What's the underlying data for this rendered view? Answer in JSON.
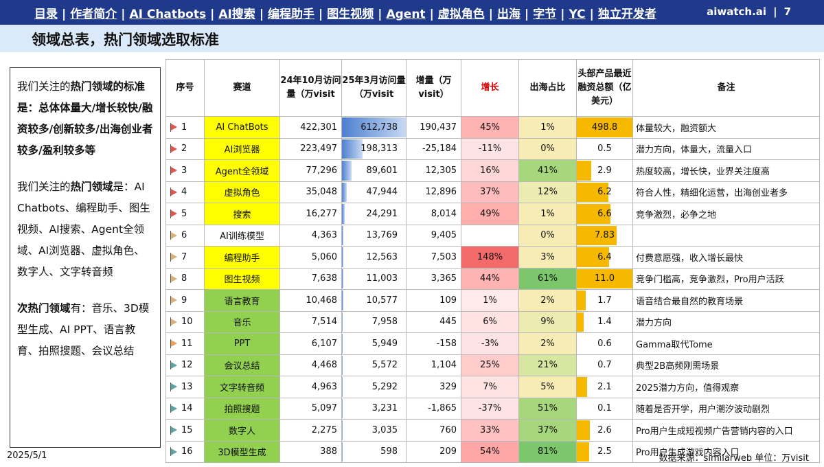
{
  "nav": {
    "items": [
      "目录",
      "作者简介",
      "AI Chatbots",
      "AI搜索",
      "编程助手",
      "图生视频",
      "Agent",
      "虚拟角色",
      "出海",
      "字节",
      "YC",
      "独立开发者"
    ],
    "brand": "aiwatch.ai",
    "page": "7"
  },
  "title": "领域总表，热门领域选取标准",
  "left": {
    "p1_pre": "我们关注的",
    "p1_b1": "热门领域的标准是：总体体量大/增长较快/融资较多/创新较多/出海创业者较多/盈利较多等",
    "p2_pre": "我们关注的",
    "p2_b": "热门领域",
    "p2_post": "是：AI Chatbots、编程助手、图生视频、AI搜索、Agent全领域、AI浏览器、虚拟角色、数字人、文字转音频",
    "p3_b": "次热门领域",
    "p3_post": "有：音乐、3D模型生成、AI PPT、语言教育、拍照搜题、会议总结"
  },
  "table": {
    "headers": [
      "序号",
      "赛道",
      "24年10月访问量（万visit",
      "25年3月访问量（万visit",
      "增量（万visit）",
      "增长",
      "出海占比",
      "头部产品最近融资总额（亿美元）",
      "备注"
    ],
    "rows": [
      {
        "idx": "1",
        "track": "AI ChatBots",
        "oct": "422,301",
        "mar": "612,738",
        "inc": "190,437",
        "growth": "45%",
        "overseas": "1%",
        "funding": "498.8",
        "note": "体量较大，融资额大"
      },
      {
        "idx": "2",
        "track": "AI浏览器",
        "oct": "223,497",
        "mar": "198,313",
        "inc": "-25,184",
        "growth": "-11%",
        "overseas": "0%",
        "funding": "0.5",
        "note": "潜力方向，体量大，流量入口"
      },
      {
        "idx": "3",
        "track": "Agent全领域",
        "oct": "77,296",
        "mar": "89,601",
        "inc": "12,305",
        "growth": "16%",
        "overseas": "41%",
        "funding": "2.9",
        "note": "热度较高，增长快，业界关注度高"
      },
      {
        "idx": "4",
        "track": "虚拟角色",
        "oct": "35,048",
        "mar": "47,944",
        "inc": "12,896",
        "growth": "37%",
        "overseas": "12%",
        "funding": "6.2",
        "note": "符合人性，精细化运营，出海创业者多"
      },
      {
        "idx": "5",
        "track": "搜索",
        "oct": "16,277",
        "mar": "24,291",
        "inc": "8,014",
        "growth": "49%",
        "overseas": "1%",
        "funding": "6.6",
        "note": "竞争激烈，必争之地"
      },
      {
        "idx": "6",
        "track": "AI训练模型",
        "oct": "4,363",
        "mar": "13,769",
        "inc": "9,405",
        "growth": "",
        "overseas": "0%",
        "funding": "7.83",
        "note": ""
      },
      {
        "idx": "7",
        "track": "编程助手",
        "oct": "5,060",
        "mar": "12,563",
        "inc": "7,503",
        "growth": "148%",
        "overseas": "3%",
        "funding": "6.4",
        "note": "付费意愿强，收入增长最快"
      },
      {
        "idx": "8",
        "track": "图生视频",
        "oct": "7,638",
        "mar": "11,003",
        "inc": "3,365",
        "growth": "44%",
        "overseas": "61%",
        "funding": "11.0",
        "note": "竞争门槛高，竞争激烈，Pro用户活跃"
      },
      {
        "idx": "9",
        "track": "语言教育",
        "oct": "10,468",
        "mar": "10,577",
        "inc": "109",
        "growth": "1%",
        "overseas": "2%",
        "funding": "1.7",
        "note": "语音结合最自然的教育场景"
      },
      {
        "idx": "10",
        "track": "音乐",
        "oct": "7,514",
        "mar": "7,958",
        "inc": "445",
        "growth": "6%",
        "overseas": "9%",
        "funding": "1.4",
        "note": "潜力方向"
      },
      {
        "idx": "11",
        "track": "PPT",
        "oct": "6,107",
        "mar": "5,949",
        "inc": "-158",
        "growth": "-3%",
        "overseas": "2%",
        "funding": "0.6",
        "note": "Gamma取代Tome"
      },
      {
        "idx": "12",
        "track": "会议总结",
        "oct": "4,468",
        "mar": "5,572",
        "inc": "1,104",
        "growth": "25%",
        "overseas": "21%",
        "funding": "0.7",
        "note": "典型2B高频刚需场景"
      },
      {
        "idx": "13",
        "track": "文字转音频",
        "oct": "4,963",
        "mar": "5,292",
        "inc": "329",
        "growth": "7%",
        "overseas": "5%",
        "funding": "2.1",
        "note": "2025潜力方向，值得观察"
      },
      {
        "idx": "14",
        "track": "拍照搜题",
        "oct": "5,097",
        "mar": "3,231",
        "inc": "-1,865",
        "growth": "-37%",
        "overseas": "51%",
        "funding": "0.1",
        "note": "随着是否开学，用户潮汐波动剧烈"
      },
      {
        "idx": "15",
        "track": "数字人",
        "oct": "2,275",
        "mar": "3,035",
        "inc": "760",
        "growth": "33%",
        "overseas": "37%",
        "funding": "2.6",
        "note": "Pro用户生成短视频广告营销内容的入口"
      },
      {
        "idx": "16",
        "track": "3D模型生成",
        "oct": "388",
        "mar": "598",
        "inc": "209",
        "growth": "54%",
        "overseas": "81%",
        "funding": "2.5",
        "note": "Pro用户生成游戏内容入口"
      }
    ]
  },
  "colors": {
    "yellow": "#ffff00",
    "green": "#92d050",
    "flag_red": "#e0564a",
    "flag_orange": "#e8a25a",
    "flag_tan": "#d9b27a",
    "flag_teal": "#5aa3a0"
  },
  "footer": {
    "date": "2025/5/1",
    "source": "数据来源：similarweb  单位：万visit"
  }
}
